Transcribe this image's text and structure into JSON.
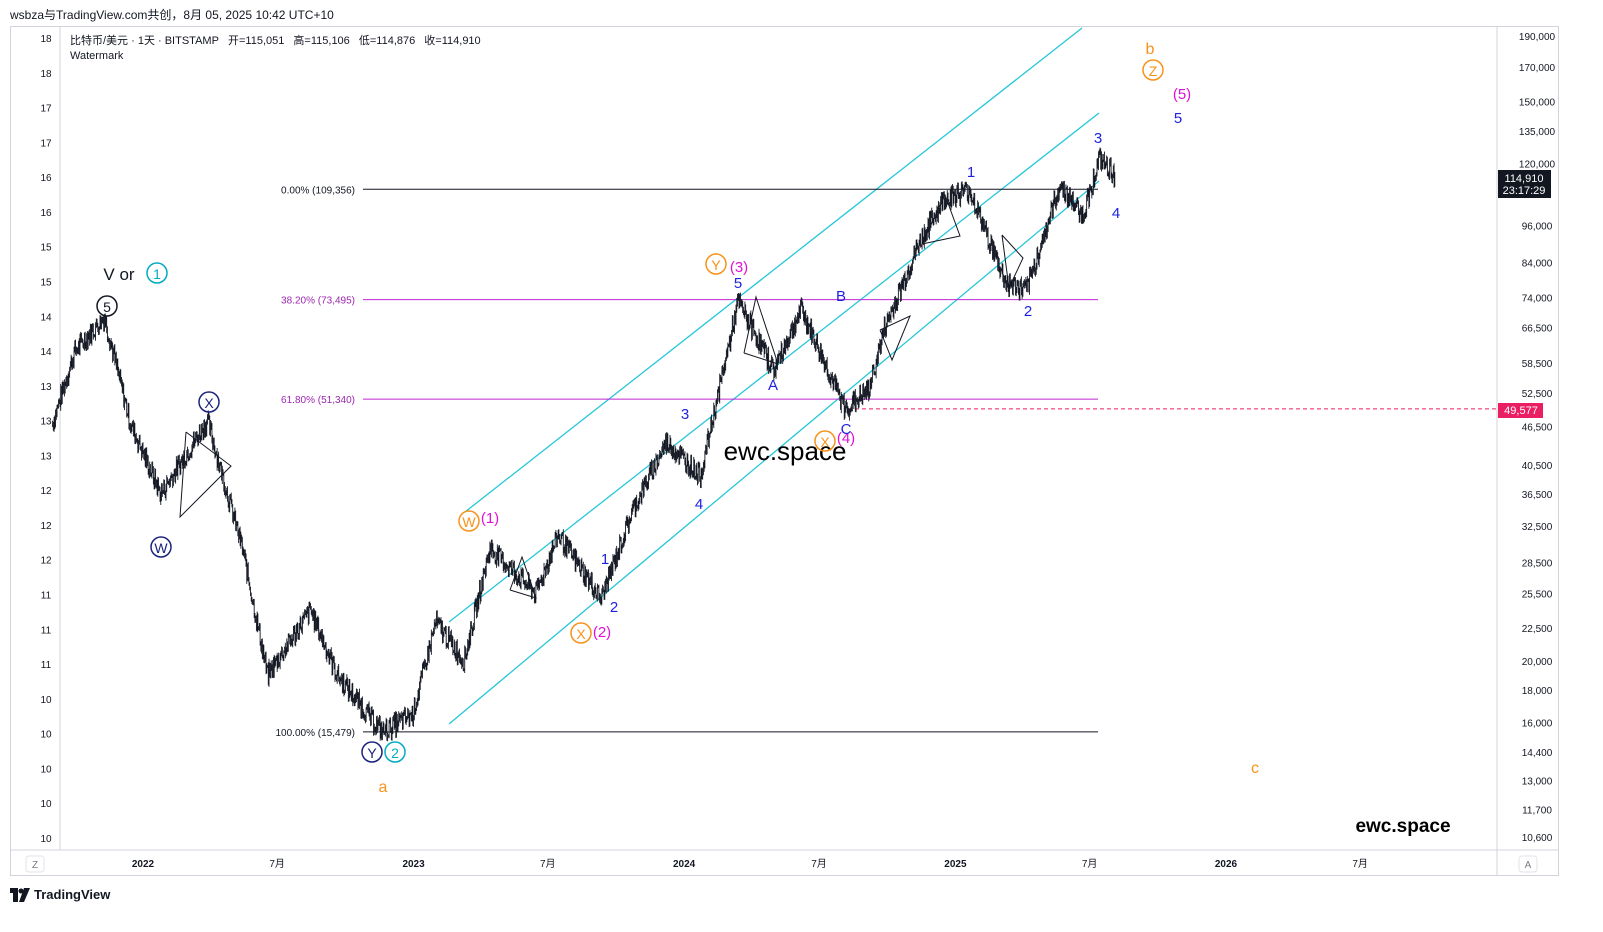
{
  "topbar": {
    "text": "wsbza与TradingView.com共创，8月 05, 2025 10:42 UTC+10"
  },
  "legend": {
    "symbol": "比特币/美元 · 1天 · BITSTAMP",
    "open": "开=115,051",
    "high": "高=115,106",
    "low": "低=114,876",
    "close": "收=114,910",
    "watermark_label": "Watermark"
  },
  "right_axis": {
    "ticks": [
      "190,000",
      "170,000",
      "150,000",
      "135,000",
      "120,000",
      "96,000",
      "84,000",
      "74,000",
      "66,500",
      "58,500",
      "52,500",
      "46,500",
      "40,500",
      "36,500",
      "32,500",
      "28,500",
      "25,500",
      "22,500",
      "20,000",
      "18,000",
      "16,000",
      "14,400",
      "13,000",
      "11,700",
      "10,600"
    ],
    "price_badge": "114,910",
    "timer_badge": "23:17:29",
    "level_badge": "49,577"
  },
  "left_axis": {
    "ticks": [
      "18",
      "18",
      "17",
      "17",
      "16",
      "16",
      "15",
      "15",
      "14",
      "14",
      "13",
      "13",
      "13",
      "12",
      "12",
      "12",
      "11",
      "11",
      "11",
      "10",
      "10",
      "10",
      "10",
      "10"
    ]
  },
  "bottom_axis": {
    "ticks": [
      "2022",
      "7月",
      "2023",
      "7月",
      "2024",
      "7月",
      "2025",
      "7月",
      "2026",
      "7月"
    ],
    "left_button": "Z",
    "right_button": "A"
  },
  "fibonacci": [
    {
      "label": "0.00% (109,356)",
      "price": 109356,
      "color": "#131722"
    },
    {
      "label": "38.20% (73,495)",
      "price": 73495,
      "color": "#9c27b0"
    },
    {
      "label": "61.80% (51,340)",
      "price": 51340,
      "color": "#9c27b0"
    },
    {
      "label": "100.00% (15,479)",
      "price": 15479,
      "color": "#131722"
    }
  ],
  "colors": {
    "candles": "#131722",
    "channel": "#26c6da",
    "fib_mid": "#c026d3",
    "dashed_level": "#e91e63",
    "navy_label": "#1a237e",
    "blue_label": "#1e22e0",
    "orange_label": "#f7931a",
    "magenta_label": "#e011d6",
    "cyan_label": "#00acc1"
  },
  "wave_labels": {
    "v_or": "V or",
    "circle_1": "1",
    "circle_5": "5",
    "circle_W": "W",
    "circle_X": "X",
    "circle_Y": "Y",
    "circle_2": "2",
    "a_orange": "a",
    "w_orange": "W",
    "paren_1": "(1)",
    "x_orange_1": "X",
    "paren_2": "(2)",
    "y_orange": "Y",
    "paren_3": "(3)",
    "x_orange_2": "X",
    "paren_4": "(4)",
    "z_orange": "Z",
    "b_orange": "b",
    "paren_5": "(5)",
    "c_orange": "c",
    "blue_1a": "1",
    "blue_2a": "2",
    "blue_3a": "3",
    "blue_4a": "4",
    "blue_5a": "5",
    "blue_A": "A",
    "blue_B": "B",
    "blue_C": "C",
    "blue_1b": "1",
    "blue_2b": "2",
    "blue_3b": "3",
    "blue_4b": "4",
    "blue_5b": "5"
  },
  "watermark_center": "ewc.space",
  "watermark_brand": "ewc.space",
  "footer": {
    "logo_text": "TradingView"
  },
  "chart_data": {
    "type": "line",
    "title": "比特币/美元 · 1天 · BITSTAMP",
    "xlabel": "",
    "ylabel": "",
    "y_scale": "log",
    "ylim": [
      10000,
      200000
    ],
    "x_range": [
      "2021-09",
      "2026-12"
    ],
    "series": [
      {
        "name": "",
        "x": [
          "2021-09-01",
          "2021-10-01",
          "2021-11-10",
          "2021-12-15",
          "2022-01-25",
          "2022-03-29",
          "2022-05-15",
          "2022-06-18",
          "2022-08-15",
          "2022-09-20",
          "2022-11-09",
          "2022-11-21",
          "2022-12-31",
          "2023-01-31",
          "2023-03-10",
          "2023-04-14",
          "2023-06-15",
          "2023-07-15",
          "2023-09-11",
          "2023-10-24",
          "2023-12-08",
          "2024-01-23",
          "2024-03-14",
          "2024-05-01",
          "2024-06-07",
          "2024-08-05",
          "2024-09-06",
          "2024-09-27",
          "2024-11-13",
          "2024-12-17",
          "2025-01-20",
          "2025-03-10",
          "2025-04-07",
          "2025-05-22",
          "2025-06-22",
          "2025-07-14",
          "2025-08-04"
        ],
        "values": [
          47000,
          61000,
          69000,
          47000,
          36500,
          47500,
          30000,
          19000,
          24000,
          19000,
          16000,
          15500,
          16500,
          23000,
          20000,
          30000,
          25500,
          31500,
          25000,
          34500,
          44000,
          39000,
          73000,
          57000,
          71000,
          49500,
          53000,
          66000,
          90000,
          106000,
          109000,
          78000,
          76000,
          111000,
          99500,
          122000,
          114910
        ]
      }
    ],
    "horizontal_levels": [
      109356,
      73495,
      51340,
      15479,
      49577
    ],
    "grid": false,
    "legend": "none"
  }
}
